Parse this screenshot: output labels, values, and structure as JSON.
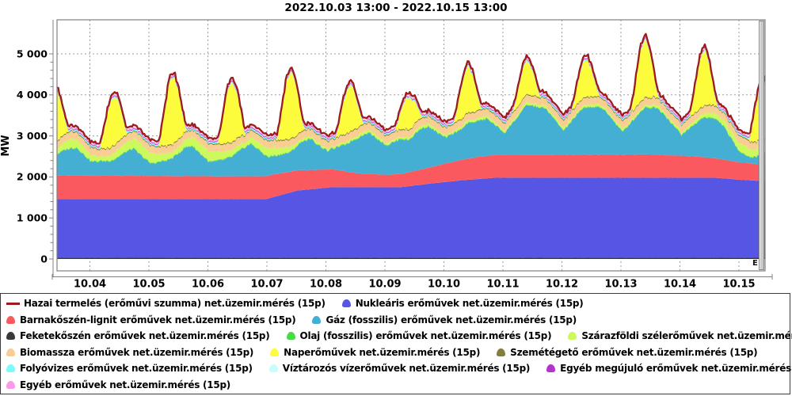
{
  "title": "2022.10.03 13:00 - 2022.10.15 13:00",
  "y_axis": {
    "label": "MW",
    "ticks": [
      "0",
      "1 000",
      "2 000",
      "3 000",
      "4 000",
      "5 000"
    ],
    "tick_values": [
      0,
      1000,
      2000,
      3000,
      4000,
      5000
    ],
    "minor_step": 200
  },
  "x_axis": {
    "labels": [
      "10.04",
      "10.05",
      "10.06",
      "10.07",
      "10.08",
      "10.09",
      "10.10",
      "10.11",
      "10.12",
      "10.13",
      "10.14",
      "10.15"
    ]
  },
  "corner_mark": "E",
  "colors": {
    "background": "#ffffff",
    "plot_border": "#808080",
    "gridline": "#9b9b9b",
    "axis_line": "#808080",
    "total_line": "#9B1B1E"
  },
  "legend": {
    "rows": [
      [
        {
          "id": "hazai",
          "marker": "line",
          "color": "#9B1B1E",
          "label": "Hazai termelés (erőművi szumma) net.üzemir.mérés (15p)"
        },
        {
          "id": "nuklearis",
          "marker": "area",
          "color": "#5755E3",
          "label": "Nukleáris erőművek net.üzemir.mérés (15p)"
        }
      ],
      [
        {
          "id": "barnakoszen",
          "marker": "area",
          "color": "#FA5A5F",
          "label": "Barnakőszén-lignit erőművek net.üzemir.mérés (15p)"
        },
        {
          "id": "gaz",
          "marker": "area",
          "color": "#44AFD3",
          "label": "Gáz (fosszilis) erőművek net.üzemir.mérés (15p)"
        }
      ],
      [
        {
          "id": "feketekoszen",
          "marker": "area",
          "color": "#3A3A3A",
          "label": "Feketekőszén erőművek net.üzemir.mérés (15p)"
        },
        {
          "id": "olaj",
          "marker": "area",
          "color": "#44DD44",
          "label": "Olaj (fosszilis) erőművek net.üzemir.mérés (15p)"
        },
        {
          "id": "szel",
          "marker": "area",
          "color": "#CCF95C",
          "label": "Szárazföldi szélerőművek net.üzemir.mérés (15p)"
        }
      ],
      [
        {
          "id": "biomassza",
          "marker": "area",
          "color": "#F9CE93",
          "label": "Biomassza erőművek net.üzemir.mérés (15p)"
        },
        {
          "id": "nap",
          "marker": "area",
          "color": "#FCFC3C",
          "label": "Naperőművek net.üzemir.mérés (15p)"
        },
        {
          "id": "szemetegeto",
          "marker": "area",
          "color": "#827F3A",
          "label": "Szemétégető erőművek net.üzemir.mérés (15p)"
        }
      ],
      [
        {
          "id": "folyovizes",
          "marker": "area",
          "color": "#7DFBFB",
          "label": "Folyóvizes erőművek net.üzemir.mérés (15p)"
        },
        {
          "id": "viztarozos",
          "marker": "area",
          "color": "#C9FCFC",
          "label": "Víztározós vízerőművek net.üzemir.mérés (15p)"
        },
        {
          "id": "egyeb_megujulo",
          "marker": "area",
          "color": "#B632CC",
          "label": "Egyéb megújuló erőművek net.üzemir.mérés (15p)"
        }
      ],
      [
        {
          "id": "egyeb",
          "marker": "area",
          "color": "#FA9AE8",
          "label": "Egyéb erőművek net.üzemir.mérés (15p)"
        }
      ]
    ]
  },
  "chart_data": {
    "type": "area",
    "stacked": true,
    "title": "2022.10.03 13:00 - 2022.10.15 13:00",
    "ylabel": "MW",
    "ylim": [
      0,
      5830
    ],
    "x_unit": "hours from 2022.10.03 13:00",
    "x_range_hours": [
      0,
      288
    ],
    "grid": true,
    "legend_position": "bottom",
    "series": [
      {
        "id": "feketekoszen",
        "label": "Feketekőszén erőművek net.üzemir.mérés (15p)",
        "color": "#3A3A3A",
        "noise": 2,
        "keypoints": [
          [
            0,
            30
          ],
          [
            288,
            30
          ]
        ]
      },
      {
        "id": "nuklearis",
        "label": "Nukleáris erőművek net.üzemir.mérés (15p)",
        "color": "#5755E3",
        "noise": 6,
        "keypoints": [
          [
            0,
            1430
          ],
          [
            85,
            1430
          ],
          [
            98,
            1640
          ],
          [
            112,
            1720
          ],
          [
            140,
            1720
          ],
          [
            152,
            1810
          ],
          [
            165,
            1890
          ],
          [
            178,
            1950
          ],
          [
            268,
            1950
          ],
          [
            278,
            1900
          ],
          [
            288,
            1870
          ]
        ]
      },
      {
        "id": "barnakoszen",
        "label": "Barnakőszén-lignit erőművek net.üzemir.mérés (15p)",
        "color": "#FA5A5F",
        "noise": 12,
        "keypoints": [
          [
            0,
            575
          ],
          [
            48,
            560
          ],
          [
            87,
            555
          ],
          [
            100,
            480
          ],
          [
            112,
            435
          ],
          [
            122,
            340
          ],
          [
            135,
            300
          ],
          [
            150,
            380
          ],
          [
            163,
            490
          ],
          [
            172,
            540
          ],
          [
            180,
            560
          ],
          [
            240,
            570
          ],
          [
            260,
            520
          ],
          [
            272,
            450
          ],
          [
            280,
            420
          ],
          [
            288,
            400
          ]
        ]
      },
      {
        "id": "gaz",
        "label": "Gáz (fosszilis) erőművek net.üzemir.mérés (15p)",
        "color": "#44AFD3",
        "noise": 55,
        "keypoints": [
          [
            0,
            515
          ],
          [
            4,
            635
          ],
          [
            8,
            670
          ],
          [
            14,
            330
          ],
          [
            20,
            350
          ],
          [
            23,
            375
          ],
          [
            28,
            575
          ],
          [
            31,
            655
          ],
          [
            38,
            295
          ],
          [
            44,
            360
          ],
          [
            47,
            430
          ],
          [
            52,
            680
          ],
          [
            55,
            730
          ],
          [
            62,
            330
          ],
          [
            68,
            400
          ],
          [
            71,
            465
          ],
          [
            76,
            685
          ],
          [
            79,
            785
          ],
          [
            86,
            440
          ],
          [
            92,
            450
          ],
          [
            95,
            465
          ],
          [
            100,
            700
          ],
          [
            103,
            750
          ],
          [
            110,
            440
          ],
          [
            116,
            600
          ],
          [
            119,
            720
          ],
          [
            124,
            920
          ],
          [
            127,
            995
          ],
          [
            134,
            710
          ],
          [
            140,
            850
          ],
          [
            143,
            770
          ],
          [
            148,
            990
          ],
          [
            151,
            995
          ],
          [
            158,
            615
          ],
          [
            164,
            735
          ],
          [
            167,
            855
          ],
          [
            172,
            875
          ],
          [
            175,
            895
          ],
          [
            182,
            520
          ],
          [
            188,
            960
          ],
          [
            191,
            1205
          ],
          [
            196,
            1150
          ],
          [
            199,
            1100
          ],
          [
            206,
            570
          ],
          [
            212,
            1000
          ],
          [
            215,
            1150
          ],
          [
            220,
            1145
          ],
          [
            223,
            1065
          ],
          [
            230,
            540
          ],
          [
            236,
            940
          ],
          [
            239,
            1135
          ],
          [
            244,
            1135
          ],
          [
            247,
            985
          ],
          [
            254,
            500
          ],
          [
            260,
            805
          ],
          [
            263,
            970
          ],
          [
            268,
            950
          ],
          [
            271,
            820
          ],
          [
            277,
            290
          ],
          [
            281,
            150
          ],
          [
            284,
            150
          ],
          [
            288,
            300
          ]
        ]
      },
      {
        "id": "olaj",
        "label": "Olaj (fosszilis) erőművek net.üzemir.mérés (15p)",
        "color": "#44DD44",
        "noise": 6,
        "keypoints": [
          [
            0,
            18
          ],
          [
            288,
            18
          ]
        ]
      },
      {
        "id": "szel",
        "label": "Szárazföldi szélerőművek net.üzemir.mérés (15p)",
        "color": "#CCF95C",
        "noise": 45,
        "keypoints": [
          [
            0,
            140
          ],
          [
            6,
            220
          ],
          [
            12,
            160
          ],
          [
            18,
            90
          ],
          [
            23,
            150
          ],
          [
            30,
            240
          ],
          [
            36,
            260
          ],
          [
            42,
            180
          ],
          [
            48,
            130
          ],
          [
            54,
            200
          ],
          [
            60,
            260
          ],
          [
            66,
            200
          ],
          [
            71,
            150
          ],
          [
            76,
            100
          ],
          [
            82,
            180
          ],
          [
            88,
            200
          ],
          [
            94,
            120
          ],
          [
            100,
            60
          ],
          [
            112,
            40
          ],
          [
            124,
            60
          ],
          [
            136,
            45
          ],
          [
            148,
            60
          ],
          [
            160,
            45
          ],
          [
            172,
            60
          ],
          [
            184,
            50
          ],
          [
            196,
            55
          ],
          [
            208,
            40
          ],
          [
            220,
            55
          ],
          [
            232,
            45
          ],
          [
            244,
            55
          ],
          [
            256,
            60
          ],
          [
            262,
            80
          ],
          [
            268,
            120
          ],
          [
            274,
            160
          ],
          [
            280,
            200
          ],
          [
            284,
            170
          ],
          [
            288,
            150
          ]
        ]
      },
      {
        "id": "biomassza",
        "label": "Biomassza erőművek net.üzemir.mérés (15p)",
        "color": "#F9CE93",
        "noise": 12,
        "keypoints": [
          [
            0,
            172
          ],
          [
            288,
            172
          ]
        ]
      },
      {
        "id": "szemetegeto",
        "label": "Szemétégető erőművek net.üzemir.mérés (15p)",
        "color": "#827F3A",
        "noise": 3,
        "keypoints": [
          [
            0,
            25
          ],
          [
            288,
            25
          ]
        ]
      },
      {
        "id": "nap",
        "label": "Naperőművek net.üzemir.mérés (15p)",
        "color": "#FCFC3C",
        "type": "solar",
        "noise": 14
      },
      {
        "id": "folyovizes",
        "label": "Folyóvizes erőművek net.üzemir.mérés (15p)",
        "color": "#7DFBFB",
        "noise": 4,
        "keypoints": [
          [
            0,
            30
          ],
          [
            288,
            30
          ]
        ]
      },
      {
        "id": "viztarozos",
        "label": "Víztározós vízerőművek net.üzemir.mérés (15p)",
        "color": "#C9FCFC",
        "noise": 2,
        "keypoints": [
          [
            0,
            6
          ],
          [
            288,
            6
          ]
        ]
      },
      {
        "id": "egyeb_megujulo",
        "label": "Egyéb megújuló erőművek net.üzemir.mérés (15p)",
        "color": "#B632CC",
        "noise": 3,
        "keypoints": [
          [
            0,
            18
          ],
          [
            288,
            18
          ]
        ]
      },
      {
        "id": "egyeb",
        "label": "Egyéb erőművek net.üzemir.mérés (15p)",
        "color": "#FA9AE8",
        "noise": 3,
        "keypoints": [
          [
            0,
            28
          ],
          [
            288,
            28
          ]
        ]
      }
    ],
    "solar": {
      "noon_hours": [
        -1,
        23,
        47,
        71,
        95,
        119,
        143,
        167,
        191,
        215,
        239,
        263,
        287
      ],
      "peaks_mw": [
        1250,
        1160,
        1590,
        1430,
        1590,
        1100,
        750,
        1100,
        800,
        900,
        1400,
        1300,
        1350
      ],
      "half_width_hours": 5.75
    },
    "total_line": {
      "id": "hazai",
      "label": "Hazai termelés (erőművi szumma) net.üzemir.mérés (15p)",
      "color": "#9B1B1E",
      "gap_above_stack_mw": 45,
      "noise": 26,
      "stroke_width": 2.3
    }
  }
}
